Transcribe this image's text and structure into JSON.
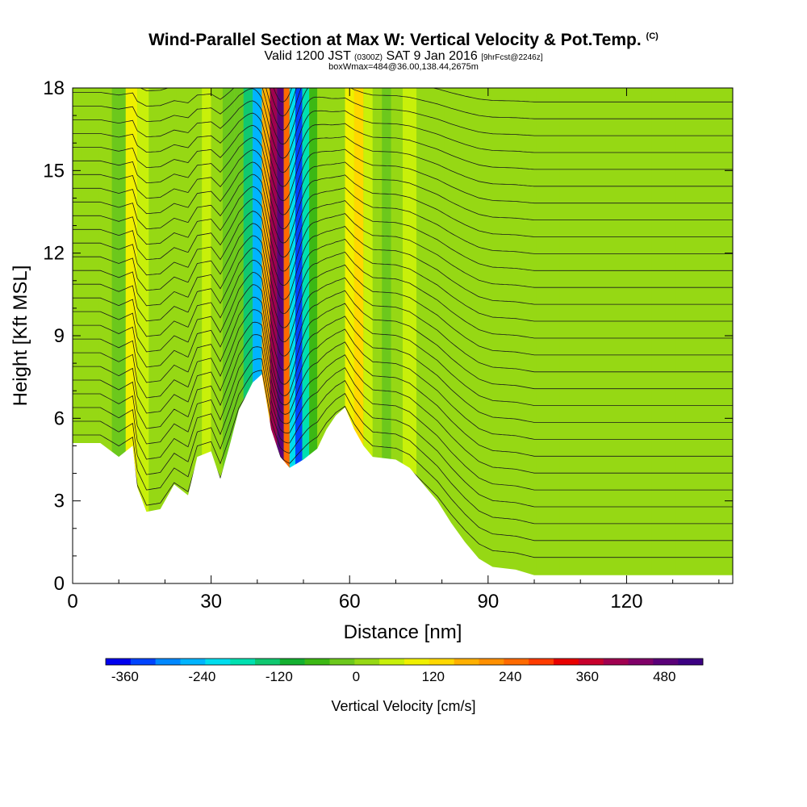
{
  "header": {
    "title": "Wind-Parallel Section at Max W: Vertical Velocity & Pot.Temp.",
    "copyright": "(C)",
    "valid_prefix": "Valid 1200 JST",
    "valid_utc": "(0300Z)",
    "valid_date": "SAT 9 Jan 2016",
    "forecast": "[9hrFcst@2246z]",
    "box_info": "boxWmax=484@36.00,138.44,2675m"
  },
  "chart_data": {
    "type": "heatmap",
    "xlabel": "Distance [nm]",
    "ylabel": "Height [Kft MSL]",
    "xlim": [
      0,
      143
    ],
    "ylim": [
      0,
      18
    ],
    "xticks": [
      0,
      30,
      60,
      90,
      120
    ],
    "yticks": [
      0,
      3,
      6,
      9,
      12,
      15,
      18
    ],
    "colorbar": {
      "label": "Vertical Velocity [cm/s]",
      "range": [
        -390,
        540
      ],
      "tick_values": [
        -360,
        -240,
        -120,
        0,
        120,
        240,
        360,
        480
      ],
      "colors": [
        "#0000ee",
        "#0044ff",
        "#0088ff",
        "#00b4ff",
        "#00ddee",
        "#00e0b0",
        "#10c870",
        "#14b030",
        "#3cb814",
        "#6cc81c",
        "#96d814",
        "#c8f00a",
        "#f0f000",
        "#ffd800",
        "#ffb000",
        "#ff9000",
        "#ff6a00",
        "#ff3c00",
        "#e80000",
        "#c8002c",
        "#a00050",
        "#800068",
        "#5a0078",
        "#3c0082"
      ]
    },
    "terrain_kft": [
      [
        0,
        5.1
      ],
      [
        6,
        5.1
      ],
      [
        10,
        4.6
      ],
      [
        13,
        5.0
      ],
      [
        14,
        3.5
      ],
      [
        16,
        2.6
      ],
      [
        19,
        2.7
      ],
      [
        22,
        3.6
      ],
      [
        25,
        3.2
      ],
      [
        27,
        4.6
      ],
      [
        30,
        4.8
      ],
      [
        32,
        3.8
      ],
      [
        34,
        5.0
      ],
      [
        36,
        6.3
      ],
      [
        39,
        7.3
      ],
      [
        41,
        7.6
      ],
      [
        42,
        6.6
      ],
      [
        43,
        5.6
      ],
      [
        45,
        4.6
      ],
      [
        47,
        4.2
      ],
      [
        50,
        4.5
      ],
      [
        53,
        4.9
      ],
      [
        55,
        5.6
      ],
      [
        57,
        6.1
      ],
      [
        59,
        6.4
      ],
      [
        61,
        5.6
      ],
      [
        63,
        5.0
      ],
      [
        65,
        4.6
      ],
      [
        70,
        4.5
      ],
      [
        73,
        4.2
      ],
      [
        76,
        3.6
      ],
      [
        79,
        3.0
      ],
      [
        82,
        2.2
      ],
      [
        85,
        1.5
      ],
      [
        88,
        0.9
      ],
      [
        91,
        0.6
      ],
      [
        96,
        0.5
      ],
      [
        100,
        0.3
      ],
      [
        143,
        0.3
      ]
    ],
    "vertical_velocity_cells_cm_s": [
      {
        "x_nm": 0,
        "w": 20
      },
      {
        "x_nm": 4,
        "w": 35
      },
      {
        "x_nm": 7,
        "w": 15
      },
      {
        "x_nm": 10,
        "w": -10
      },
      {
        "x_nm": 13,
        "w": 110
      },
      {
        "x_nm": 15,
        "w": 40
      },
      {
        "x_nm": 18,
        "w": 25
      },
      {
        "x_nm": 21,
        "w": 5
      },
      {
        "x_nm": 24,
        "w": 35
      },
      {
        "x_nm": 27,
        "w": 20
      },
      {
        "x_nm": 29,
        "w": 70
      },
      {
        "x_nm": 31,
        "w": 30
      },
      {
        "x_nm": 34,
        "w": -5
      },
      {
        "x_nm": 36,
        "w": -40
      },
      {
        "x_nm": 38,
        "w": -120
      },
      {
        "x_nm": 40,
        "w": -270
      },
      {
        "x_nm": 42,
        "w": 180
      },
      {
        "x_nm": 43.5,
        "w": 390
      },
      {
        "x_nm": 45,
        "w": 480
      },
      {
        "x_nm": 46.5,
        "w": 230
      },
      {
        "x_nm": 47.5,
        "w": -200
      },
      {
        "x_nm": 49,
        "w": -340
      },
      {
        "x_nm": 50.5,
        "w": -180
      },
      {
        "x_nm": 52,
        "w": -60
      },
      {
        "x_nm": 54,
        "w": 20
      },
      {
        "x_nm": 56,
        "w": 0
      },
      {
        "x_nm": 58,
        "w": 30
      },
      {
        "x_nm": 60,
        "w": 100
      },
      {
        "x_nm": 62,
        "w": 140
      },
      {
        "x_nm": 64,
        "w": 50
      },
      {
        "x_nm": 66,
        "w": 15
      },
      {
        "x_nm": 68,
        "w": -20
      },
      {
        "x_nm": 70,
        "w": 10
      },
      {
        "x_nm": 73,
        "w": 40
      },
      {
        "x_nm": 76,
        "w": 15
      },
      {
        "x_nm": 79,
        "w": 30
      },
      {
        "x_nm": 82,
        "w": 10
      },
      {
        "x_nm": 86,
        "w": 25
      },
      {
        "x_nm": 90,
        "w": 15
      },
      {
        "x_nm": 94,
        "w": 5
      },
      {
        "x_nm": 98,
        "w": 30
      },
      {
        "x_nm": 103,
        "w": 10
      },
      {
        "x_nm": 108,
        "w": 25
      },
      {
        "x_nm": 113,
        "w": 15
      },
      {
        "x_nm": 118,
        "w": 20
      },
      {
        "x_nm": 123,
        "w": 10
      },
      {
        "x_nm": 128,
        "w": 30
      },
      {
        "x_nm": 133,
        "w": 15
      },
      {
        "x_nm": 138,
        "w": 25
      }
    ]
  }
}
